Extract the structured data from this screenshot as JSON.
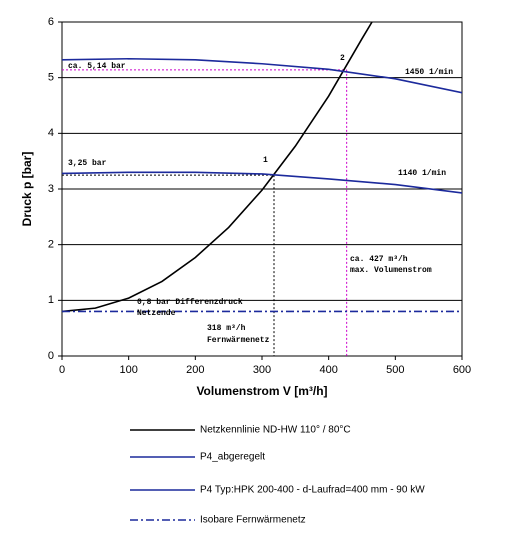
{
  "chart_data": {
    "type": "line",
    "x_label": "Volumenstrom V [m³/h]",
    "y_label": "Druck p [bar]",
    "xlim": [
      0,
      600
    ],
    "xticks": [
      0,
      100,
      200,
      300,
      400,
      500,
      600
    ],
    "ylim": [
      0,
      6
    ],
    "yticks": [
      0,
      1,
      2,
      3,
      4,
      5,
      6
    ],
    "grid": "y",
    "legend": "bottom",
    "series": [
      {
        "name": "Netzkennlinie ND-HW 110° / 80°C",
        "color": "#000000",
        "style": "solid",
        "x": [
          0,
          50,
          100,
          150,
          200,
          250,
          300,
          350,
          400,
          450,
          465
        ],
        "values": [
          0.8,
          0.86,
          1.04,
          1.34,
          1.77,
          2.31,
          2.98,
          3.77,
          4.67,
          5.7,
          6.0
        ]
      },
      {
        "name": "P4_abgeregelt",
        "color": "#1c2a9c",
        "style": "solid",
        "x": [
          0,
          100,
          200,
          300,
          400,
          500,
          600
        ],
        "values": [
          3.28,
          3.3,
          3.3,
          3.27,
          3.18,
          3.08,
          2.93
        ]
      },
      {
        "name": "P4 Typ:HPK 200-400 - d-Laufrad=400 mm - 90 kW",
        "color": "#1c2a9c",
        "style": "solid",
        "x": [
          0,
          100,
          200,
          300,
          400,
          500,
          600
        ],
        "values": [
          5.32,
          5.34,
          5.32,
          5.25,
          5.15,
          4.98,
          4.73
        ]
      },
      {
        "name": "Isobare Fernwärmenetz",
        "color": "#1c2a9c",
        "style": "dashdot",
        "x": [
          0,
          600
        ],
        "values": [
          0.8,
          0.8
        ]
      }
    ],
    "ref_lines": [
      {
        "x": 427,
        "y": 5.14,
        "color": "#cc00cc"
      },
      {
        "x": 318,
        "y": 3.25,
        "color": "#000000"
      }
    ],
    "annotations": [
      "ca. 5,14 bar",
      "3,25 bar",
      "1",
      "2",
      "1450 1/min",
      "1140 1/min",
      "ca. 427 m³/h",
      "max. Volumenstrom",
      "0,8 bar Differenzdruck",
      "Netzende",
      "318 m³/h",
      "Fernwärmenetz"
    ]
  }
}
